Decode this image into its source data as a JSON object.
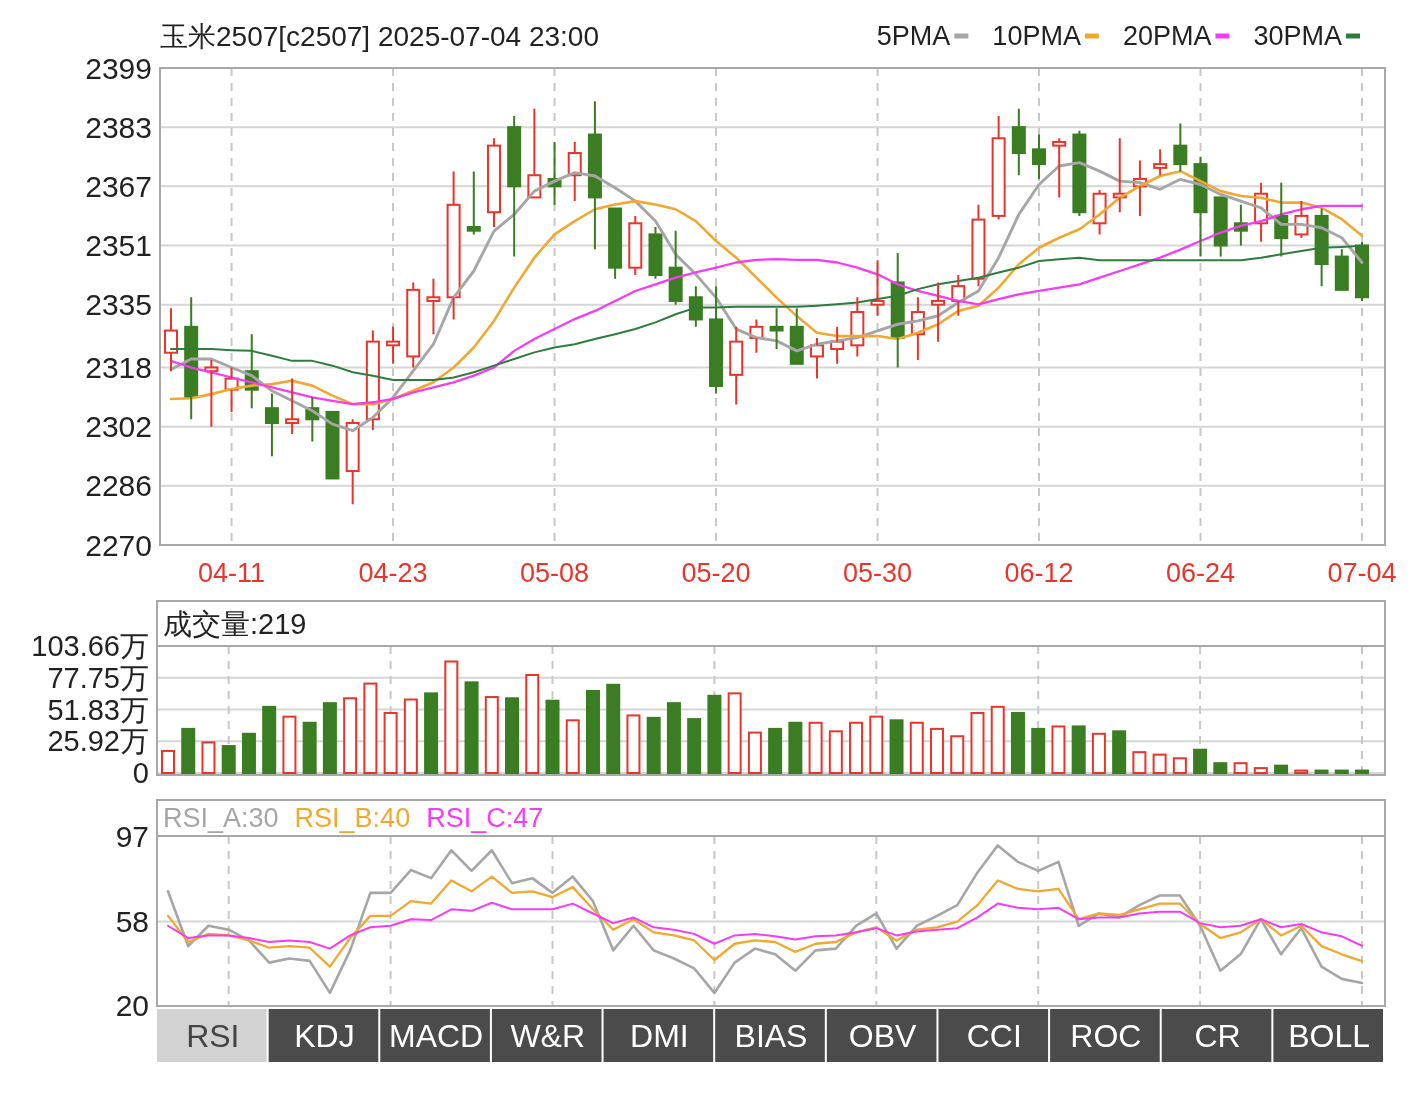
{
  "chart_data": [
    {
      "type": "candlestick",
      "title": "玉米2507[c2507] 2025-07-04 23:00",
      "categories": [
        null,
        null,
        null,
        "04-11",
        null,
        null,
        null,
        null,
        null,
        null,
        null,
        "04-23",
        null,
        null,
        null,
        null,
        null,
        null,
        null,
        "05-08",
        null,
        null,
        null,
        null,
        null,
        null,
        null,
        "05-20",
        null,
        null,
        null,
        null,
        null,
        null,
        null,
        "05-30",
        null,
        null,
        null,
        null,
        null,
        null,
        null,
        "06-12",
        null,
        null,
        null,
        null,
        null,
        null,
        null,
        "06-24",
        null,
        null,
        null,
        null,
        null,
        null,
        null,
        "07-04"
      ],
      "ohlc": [
        [
          2322,
          2334,
          2317,
          2328
        ],
        [
          2329,
          2337,
          2304,
          2310
        ],
        [
          2317,
          2320,
          2302,
          2318
        ],
        [
          2312,
          2318,
          2306,
          2315
        ],
        [
          2317,
          2327,
          2307,
          2312
        ],
        [
          2307,
          2311,
          2294,
          2303
        ],
        [
          2303,
          2315,
          2300,
          2304
        ],
        [
          2307,
          2310,
          2298,
          2304
        ],
        [
          2306,
          2306,
          2288,
          2288
        ],
        [
          2290,
          2304,
          2281,
          2303
        ],
        [
          2304,
          2328,
          2301,
          2325
        ],
        [
          2324,
          2329,
          2319,
          2325
        ],
        [
          2321,
          2341,
          2318,
          2339
        ],
        [
          2336,
          2342,
          2327,
          2337
        ],
        [
          2337,
          2371,
          2331,
          2362
        ],
        [
          2356,
          2371,
          2354,
          2355
        ],
        [
          2360,
          2380,
          2356,
          2378
        ],
        [
          2383,
          2386,
          2348,
          2367
        ],
        [
          2364,
          2388,
          2364,
          2370
        ],
        [
          2369,
          2379,
          2362,
          2367
        ],
        [
          2370,
          2379,
          2363,
          2376
        ],
        [
          2381,
          2390,
          2350,
          2364
        ],
        [
          2361,
          2361,
          2342,
          2345
        ],
        [
          2345,
          2359,
          2343,
          2357
        ],
        [
          2354,
          2356,
          2342,
          2343
        ],
        [
          2345,
          2355,
          2335,
          2336
        ],
        [
          2337,
          2340,
          2329,
          2331
        ],
        [
          2331,
          2340,
          2311,
          2313
        ],
        [
          2316,
          2329,
          2308,
          2325
        ],
        [
          2326,
          2331,
          2322,
          2329
        ],
        [
          2329,
          2334,
          2323,
          2328
        ],
        [
          2329,
          2334,
          2319,
          2319
        ],
        [
          2321,
          2326,
          2315,
          2324
        ],
        [
          2323,
          2329,
          2319,
          2325
        ],
        [
          2324,
          2337,
          2321,
          2333
        ],
        [
          2335,
          2347,
          2332,
          2336
        ],
        [
          2341,
          2349,
          2318,
          2326
        ],
        [
          2327,
          2337,
          2320,
          2333
        ],
        [
          2335,
          2341,
          2325,
          2336
        ],
        [
          2336,
          2343,
          2332,
          2340
        ],
        [
          2342,
          2362,
          2340,
          2358
        ],
        [
          2359,
          2386,
          2358,
          2380
        ],
        [
          2383,
          2388,
          2370,
          2376
        ],
        [
          2377,
          2381,
          2369,
          2373
        ],
        [
          2378,
          2380,
          2364,
          2379
        ],
        [
          2381,
          2382,
          2359,
          2360
        ],
        [
          2357,
          2366,
          2354,
          2365
        ],
        [
          2364,
          2380,
          2360,
          2365
        ],
        [
          2367,
          2374,
          2359,
          2369
        ],
        [
          2372,
          2377,
          2370,
          2373
        ],
        [
          2378,
          2384,
          2371,
          2373
        ],
        [
          2373,
          2375,
          2348,
          2360
        ],
        [
          2364,
          2364,
          2348,
          2351
        ],
        [
          2357,
          2362,
          2351,
          2355
        ],
        [
          2357,
          2368,
          2352,
          2365
        ],
        [
          2359,
          2368,
          2348,
          2353
        ],
        [
          2354,
          2363,
          2353,
          2359
        ],
        [
          2359,
          2361,
          2340,
          2346
        ],
        [
          2348,
          2350,
          2339,
          2339
        ],
        [
          2351,
          2352,
          2336,
          2337
        ]
      ],
      "colors": [
        "#e8352b",
        "#3a7d22",
        "#e8352b",
        "#e8352b",
        "#3a7d22",
        "#3a7d22",
        "#e8352b",
        "#3a7d22",
        "#3a7d22",
        "#e8352b",
        "#e8352b",
        "#e8352b",
        "#e8352b",
        "#e8352b",
        "#e8352b",
        "#3a7d22",
        "#e8352b",
        "#3a7d22",
        "#e8352b",
        "#3a7d22",
        "#e8352b",
        "#3a7d22",
        "#3a7d22",
        "#e8352b",
        "#3a7d22",
        "#3a7d22",
        "#3a7d22",
        "#3a7d22",
        "#e8352b",
        "#e8352b",
        "#3a7d22",
        "#3a7d22",
        "#e8352b",
        "#e8352b",
        "#e8352b",
        "#e8352b",
        "#3a7d22",
        "#e8352b",
        "#e8352b",
        "#e8352b",
        "#e8352b",
        "#e8352b",
        "#3a7d22",
        "#3a7d22",
        "#e8352b",
        "#3a7d22",
        "#e8352b",
        "#e8352b",
        "#e8352b",
        "#e8352b",
        "#3a7d22",
        "#3a7d22",
        "#3a7d22",
        "#3a7d22",
        "#e8352b",
        "#3a7d22",
        "#e8352b",
        "#3a7d22",
        "#3a7d22",
        "#3a7d22"
      ],
      "series": [
        {
          "type": "line",
          "name": "5PMA",
          "color": "#a6a6a6",
          "values": [
            2317.5,
            2320.3,
            2320.3,
            2318,
            2315.8,
            2311.7,
            2309,
            2306.3,
            2302.7,
            2300.9,
            2304.5,
            2309.9,
            2317.1,
            2324.3,
            2336.9,
            2344.1,
            2354.9,
            2359.4,
            2365.7,
            2368.4,
            2370.7,
            2369.8,
            2366.6,
            2363,
            2357.6,
            2348.6,
            2343.2,
            2336.9,
            2328.4,
            2326.1,
            2325.2,
            2322.5,
            2324.3,
            2325.2,
            2326.1,
            2327.9,
            2329.7,
            2330.6,
            2332,
            2335.6,
            2338.7,
            2347.7,
            2359.4,
            2367.5,
            2372.5,
            2373.4,
            2371.1,
            2368.4,
            2368,
            2366.2,
            2368.9,
            2367.5,
            2364.8,
            2363,
            2361.2,
            2356.7,
            2356.7,
            2355.8,
            2353.1,
            2346.4
          ]
        },
        {
          "type": "line",
          "name": "10PMA",
          "color": "#f0a830",
          "values": [
            2309.5,
            2309.7,
            2310.8,
            2312.2,
            2313.1,
            2313.5,
            2314.4,
            2313.1,
            2310.4,
            2308.1,
            2308.1,
            2309.5,
            2311.7,
            2314,
            2318,
            2323.4,
            2330.6,
            2339.6,
            2347.7,
            2354,
            2357.6,
            2360.8,
            2362.1,
            2363,
            2362.1,
            2360.8,
            2357.6,
            2352.2,
            2347.7,
            2342.3,
            2336.9,
            2331.9,
            2327.4,
            2326.5,
            2326.5,
            2326.5,
            2325.7,
            2327.4,
            2329.7,
            2333.3,
            2334.7,
            2339.6,
            2345.9,
            2350.4,
            2353.1,
            2355.4,
            2359.4,
            2363.9,
            2367.1,
            2369.8,
            2371.1,
            2368.4,
            2365.7,
            2364.4,
            2363.9,
            2362.6,
            2362.6,
            2361.2,
            2358.1,
            2353.6
          ]
        },
        {
          "type": "line",
          "name": "20PMA",
          "color": "#f53cf5",
          "values": [
            2319.8,
            2318,
            2316.7,
            2315.3,
            2314,
            2312.6,
            2311.3,
            2309.9,
            2309,
            2308.1,
            2308.6,
            2309.5,
            2311.3,
            2312.6,
            2314,
            2315.8,
            2318,
            2322.5,
            2325.7,
            2328.4,
            2331.1,
            2333.3,
            2336,
            2338.7,
            2340.5,
            2342.3,
            2343.7,
            2345,
            2346.4,
            2347.1,
            2347.3,
            2347.1,
            2347.1,
            2346.4,
            2345,
            2343.2,
            2340.5,
            2338.7,
            2337.4,
            2336,
            2335.1,
            2336.5,
            2337.8,
            2338.7,
            2339.6,
            2340.5,
            2342.3,
            2344.1,
            2345.9,
            2347.7,
            2349.9,
            2352.2,
            2354.5,
            2356.3,
            2357.6,
            2359.4,
            2360.8,
            2361.7,
            2361.7,
            2361.7
          ]
        },
        {
          "type": "line",
          "name": "30PMA",
          "color": "#2e7d3c",
          "values": [
            2323,
            2323,
            2323,
            2322.7,
            2322.5,
            2321.2,
            2319.8,
            2319.8,
            2318.5,
            2316.7,
            2315.8,
            2314.6,
            2314.6,
            2314.6,
            2315.3,
            2316.7,
            2318.5,
            2320.3,
            2322.1,
            2323.4,
            2324.3,
            2325.7,
            2327,
            2328.4,
            2330.2,
            2332.4,
            2334.2,
            2334.2,
            2334.4,
            2334.4,
            2334.4,
            2334.4,
            2334.7,
            2335.1,
            2335.6,
            2336.5,
            2337.4,
            2339.2,
            2340.5,
            2341.4,
            2342.3,
            2343.7,
            2345,
            2346.8,
            2347.3,
            2347.7,
            2347,
            2347,
            2347,
            2347,
            2347,
            2347,
            2347,
            2347,
            2347.7,
            2348.6,
            2349.5,
            2350.4,
            2350.6,
            2350.9
          ]
        }
      ],
      "ylim": [
        2270,
        2399
      ],
      "yticks": [
        2270,
        2286,
        2302,
        2318,
        2335,
        2351,
        2367,
        2383,
        2399
      ],
      "grid": true,
      "legend": "top right"
    },
    {
      "type": "bar",
      "title": "成交量:219",
      "categories": [
        null,
        null,
        null,
        null,
        null,
        null,
        null,
        null,
        null,
        null,
        null,
        null,
        null,
        null,
        null,
        null,
        null,
        null,
        null,
        null,
        null,
        null,
        null,
        null,
        null,
        null,
        null,
        null,
        null,
        null,
        null,
        null,
        null,
        null,
        null,
        null,
        null,
        null,
        null,
        null,
        null,
        null,
        null,
        null,
        null,
        null,
        null,
        null,
        null,
        null,
        null,
        null,
        null,
        null,
        null,
        null,
        null,
        null,
        null,
        null
      ],
      "values": [
        18,
        36,
        25,
        22,
        32,
        54,
        46,
        41,
        57,
        61,
        73,
        49,
        60,
        65,
        91,
        74,
        62,
        61,
        80,
        59,
        43,
        67,
        72,
        47,
        45,
        57,
        44,
        63,
        65,
        33,
        36,
        41,
        41,
        34,
        41,
        46,
        43,
        41,
        36,
        30,
        49,
        54,
        49,
        36,
        38,
        38,
        32,
        34,
        17,
        15,
        12,
        19,
        8,
        8,
        4,
        6,
        2,
        2,
        2,
        2
      ],
      "colors": [
        "#e8352b",
        "#3a7d22",
        "#e8352b",
        "#3a7d22",
        "#3a7d22",
        "#3a7d22",
        "#e8352b",
        "#3a7d22",
        "#3a7d22",
        "#e8352b",
        "#e8352b",
        "#e8352b",
        "#e8352b",
        "#3a7d22",
        "#e8352b",
        "#3a7d22",
        "#e8352b",
        "#3a7d22",
        "#e8352b",
        "#3a7d22",
        "#e8352b",
        "#3a7d22",
        "#3a7d22",
        "#e8352b",
        "#3a7d22",
        "#3a7d22",
        "#3a7d22",
        "#3a7d22",
        "#e8352b",
        "#e8352b",
        "#3a7d22",
        "#3a7d22",
        "#e8352b",
        "#e8352b",
        "#e8352b",
        "#e8352b",
        "#3a7d22",
        "#e8352b",
        "#e8352b",
        "#e8352b",
        "#e8352b",
        "#e8352b",
        "#3a7d22",
        "#3a7d22",
        "#e8352b",
        "#3a7d22",
        "#e8352b",
        "#3a7d22",
        "#e8352b",
        "#e8352b",
        "#e8352b",
        "#3a7d22",
        "#3a7d22",
        "#e8352b",
        "#e8352b",
        "#3a7d22",
        "#e8352b",
        "#3a7d22",
        "#3a7d22",
        "#3a7d22"
      ],
      "ylim": [
        0,
        103.66
      ],
      "yticks": [
        0,
        {
          "value": 25.92,
          "label": "25.92万"
        },
        {
          "value": 51.83,
          "label": "51.83万"
        },
        {
          "value": 77.75,
          "label": "77.75万"
        },
        {
          "value": 103.66,
          "label": "103.66万"
        }
      ],
      "grid": true,
      "tick_labels": "y"
    },
    {
      "type": "line",
      "categories": [
        null,
        null,
        null,
        null,
        null,
        null,
        null,
        null,
        null,
        null,
        null,
        null,
        null,
        null,
        null,
        null,
        null,
        null,
        null,
        null,
        null,
        null,
        null,
        null,
        null,
        null,
        null,
        null,
        null,
        null,
        null,
        null,
        null,
        null,
        null,
        null,
        null,
        null,
        null,
        null,
        null,
        null,
        null,
        null,
        null,
        null,
        null,
        null,
        null,
        null,
        null,
        null,
        null,
        null,
        null,
        null,
        null,
        null,
        null,
        null
      ],
      "series": [
        {
          "name": "RSI_A:30",
          "color": "#a6a6a6",
          "values": [
            71.8,
            46.8,
            56.1,
            54.3,
            49.4,
            39.3,
            41.2,
            40.1,
            25.5,
            44.9,
            71.1,
            71.1,
            81.5,
            77.8,
            90.5,
            81.1,
            90.5,
            75.5,
            77.8,
            71.1,
            78.5,
            67.3,
            44.9,
            56.1,
            44.9,
            41.2,
            36.7,
            25.5,
            39.3,
            45.7,
            43.1,
            35.6,
            44.9,
            45.7,
            56.1,
            61.7,
            45.7,
            56.1,
            60.6,
            65.5,
            80.4,
            92.7,
            85.2,
            81.1,
            85.2,
            56.1,
            61.7,
            59.9,
            65.5,
            69.9,
            69.9,
            56.1,
            35.6,
            43.1,
            59.1,
            43.1,
            55,
            37.5,
            31.9,
            30
          ]
        },
        {
          "name": "RSI_B:40",
          "color": "#f0a830",
          "values": [
            60.6,
            48.7,
            52.4,
            51.7,
            49.4,
            46.1,
            46.8,
            46.1,
            37.5,
            50.5,
            60.6,
            60.6,
            67.3,
            66.2,
            76.7,
            71.8,
            78.5,
            71.1,
            71.8,
            69.2,
            73.7,
            63.6,
            54.3,
            59.1,
            53.1,
            51.7,
            49.4,
            40.5,
            47.9,
            49.4,
            48.7,
            44.2,
            47.9,
            48.7,
            53.1,
            55.4,
            49.4,
            54.3,
            55.4,
            58,
            65.5,
            76.7,
            72.9,
            71.8,
            72.9,
            59.1,
            61.7,
            61,
            63.6,
            66.2,
            66.2,
            56.9,
            50.5,
            53.1,
            59.1,
            51.7,
            56.1,
            46.8,
            43.1,
            40
          ]
        },
        {
          "name": "RSI_C:47",
          "color": "#f53cf5",
          "values": [
            56.1,
            50.5,
            51.7,
            51.7,
            50.5,
            48.7,
            49.4,
            48.7,
            45.7,
            51.7,
            55.4,
            56.1,
            59.1,
            58.7,
            63.6,
            62.9,
            66.6,
            63.6,
            63.6,
            63.6,
            66.2,
            61.7,
            57.3,
            59.9,
            55.4,
            54.3,
            52.4,
            47.9,
            51.7,
            52.4,
            51.3,
            49.8,
            51.3,
            51.7,
            53.1,
            55,
            51.7,
            53.5,
            54.3,
            55,
            59.9,
            66.2,
            64.3,
            63.6,
            64.3,
            59.1,
            59.9,
            59.9,
            61.7,
            62.5,
            62.5,
            57.3,
            55.4,
            56.1,
            59.1,
            55.4,
            56.9,
            53.1,
            51.3,
            47
          ]
        }
      ],
      "ref_lines": [
        {
          "axis": "y",
          "value": 58,
          "color": "#d6d6d6"
        }
      ],
      "ylim": [
        20,
        97
      ],
      "yticks": [
        20,
        58,
        97
      ],
      "grid": "x",
      "legend": "top left",
      "tick_labels": "y"
    },
    {
      "type": "other",
      "annotations": [
        "RSI",
        "KDJ",
        "MACD",
        "W&R",
        "DMI",
        "BIAS",
        "OBV",
        "CCI",
        "ROC",
        "CR",
        "BOLL"
      ]
    }
  ]
}
